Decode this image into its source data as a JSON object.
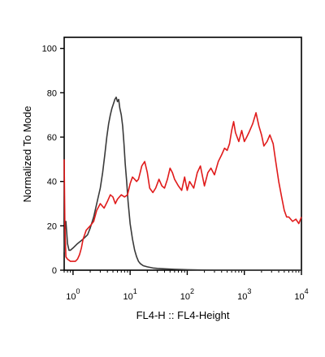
{
  "chart_data": {
    "type": "line",
    "title": "",
    "xlabel": "FL4-H :: FL4-Height",
    "ylabel": "Normalized To Mode",
    "xscale": "log",
    "xlim": [
      0.7,
      10000
    ],
    "ylim": [
      0,
      105
    ],
    "grid": false,
    "legend": "none",
    "y_ticks": [
      0,
      20,
      40,
      60,
      80,
      100
    ],
    "x_ticks": [
      {
        "value": 1,
        "base": "10",
        "exp": "0"
      },
      {
        "value": 10,
        "base": "10",
        "exp": "1"
      },
      {
        "value": 100,
        "base": "10",
        "exp": "2"
      },
      {
        "value": 1000,
        "base": "10",
        "exp": "3"
      },
      {
        "value": 10000,
        "base": "10",
        "exp": "4"
      }
    ],
    "series": [
      {
        "color": "#3a3a3a",
        "x": [
          0.7,
          0.72,
          0.75,
          0.8,
          0.85,
          0.9,
          1.0,
          1.2,
          1.5,
          1.8,
          2.0,
          2.3,
          2.6,
          3.0,
          3.3,
          3.6,
          3.9,
          4.2,
          4.5,
          4.8,
          5.1,
          5.4,
          5.7,
          6.0,
          6.3,
          6.6,
          7.0,
          7.4,
          7.8,
          8.2,
          8.7,
          9.2,
          10,
          11,
          12,
          13,
          14,
          15,
          17,
          20,
          25,
          30,
          40,
          60,
          80,
          100,
          150,
          300,
          1000,
          10000
        ],
        "y": [
          8,
          18,
          22,
          12,
          9,
          9,
          10,
          12,
          14,
          16,
          19,
          24,
          30,
          37,
          44,
          52,
          60,
          66,
          70,
          73,
          75,
          77,
          78,
          76,
          77,
          73,
          70,
          65,
          57,
          48,
          40,
          31,
          21,
          14,
          9,
          6,
          4,
          3,
          2,
          1.5,
          1,
          0.8,
          0.6,
          0.4,
          0.3,
          0.2,
          0.1,
          0,
          0,
          0
        ]
      },
      {
        "color": "#e01b1b",
        "x": [
          0.7,
          0.72,
          0.75,
          0.8,
          0.9,
          1.0,
          1.1,
          1.2,
          1.3,
          1.4,
          1.5,
          1.7,
          2.0,
          2.3,
          2.6,
          3.0,
          3.5,
          4.0,
          4.5,
          5.0,
          5.5,
          6.0,
          7.0,
          8.0,
          9.0,
          10,
          11,
          12,
          13,
          14,
          15,
          16,
          18,
          20,
          22,
          25,
          28,
          32,
          36,
          40,
          45,
          50,
          55,
          60,
          70,
          80,
          90,
          100,
          110,
          130,
          150,
          170,
          200,
          230,
          260,
          300,
          350,
          400,
          450,
          500,
          550,
          600,
          650,
          700,
          800,
          900,
          1000,
          1100,
          1200,
          1400,
          1600,
          1800,
          2000,
          2200,
          2500,
          2800,
          3200,
          3500,
          4000,
          4500,
          5000,
          5500,
          6000,
          7000,
          8000,
          9000,
          10000
        ],
        "y": [
          50,
          20,
          6,
          5,
          4,
          4,
          4,
          5,
          7,
          10,
          14,
          18,
          20,
          22,
          27,
          30,
          28,
          31,
          34,
          33,
          30,
          32,
          34,
          33,
          34,
          39,
          42,
          41,
          40,
          41,
          44,
          47,
          49,
          44,
          37,
          35,
          37,
          41,
          38,
          37,
          41,
          46,
          44,
          41,
          38,
          36,
          42,
          36,
          40,
          37,
          44,
          47,
          38,
          44,
          46,
          43,
          49,
          52,
          55,
          54,
          57,
          63,
          67,
          62,
          58,
          63,
          58,
          60,
          62,
          66,
          71,
          65,
          61,
          56,
          58,
          61,
          57,
          50,
          40,
          33,
          27,
          24,
          24,
          22,
          23,
          21,
          24
        ]
      }
    ]
  }
}
